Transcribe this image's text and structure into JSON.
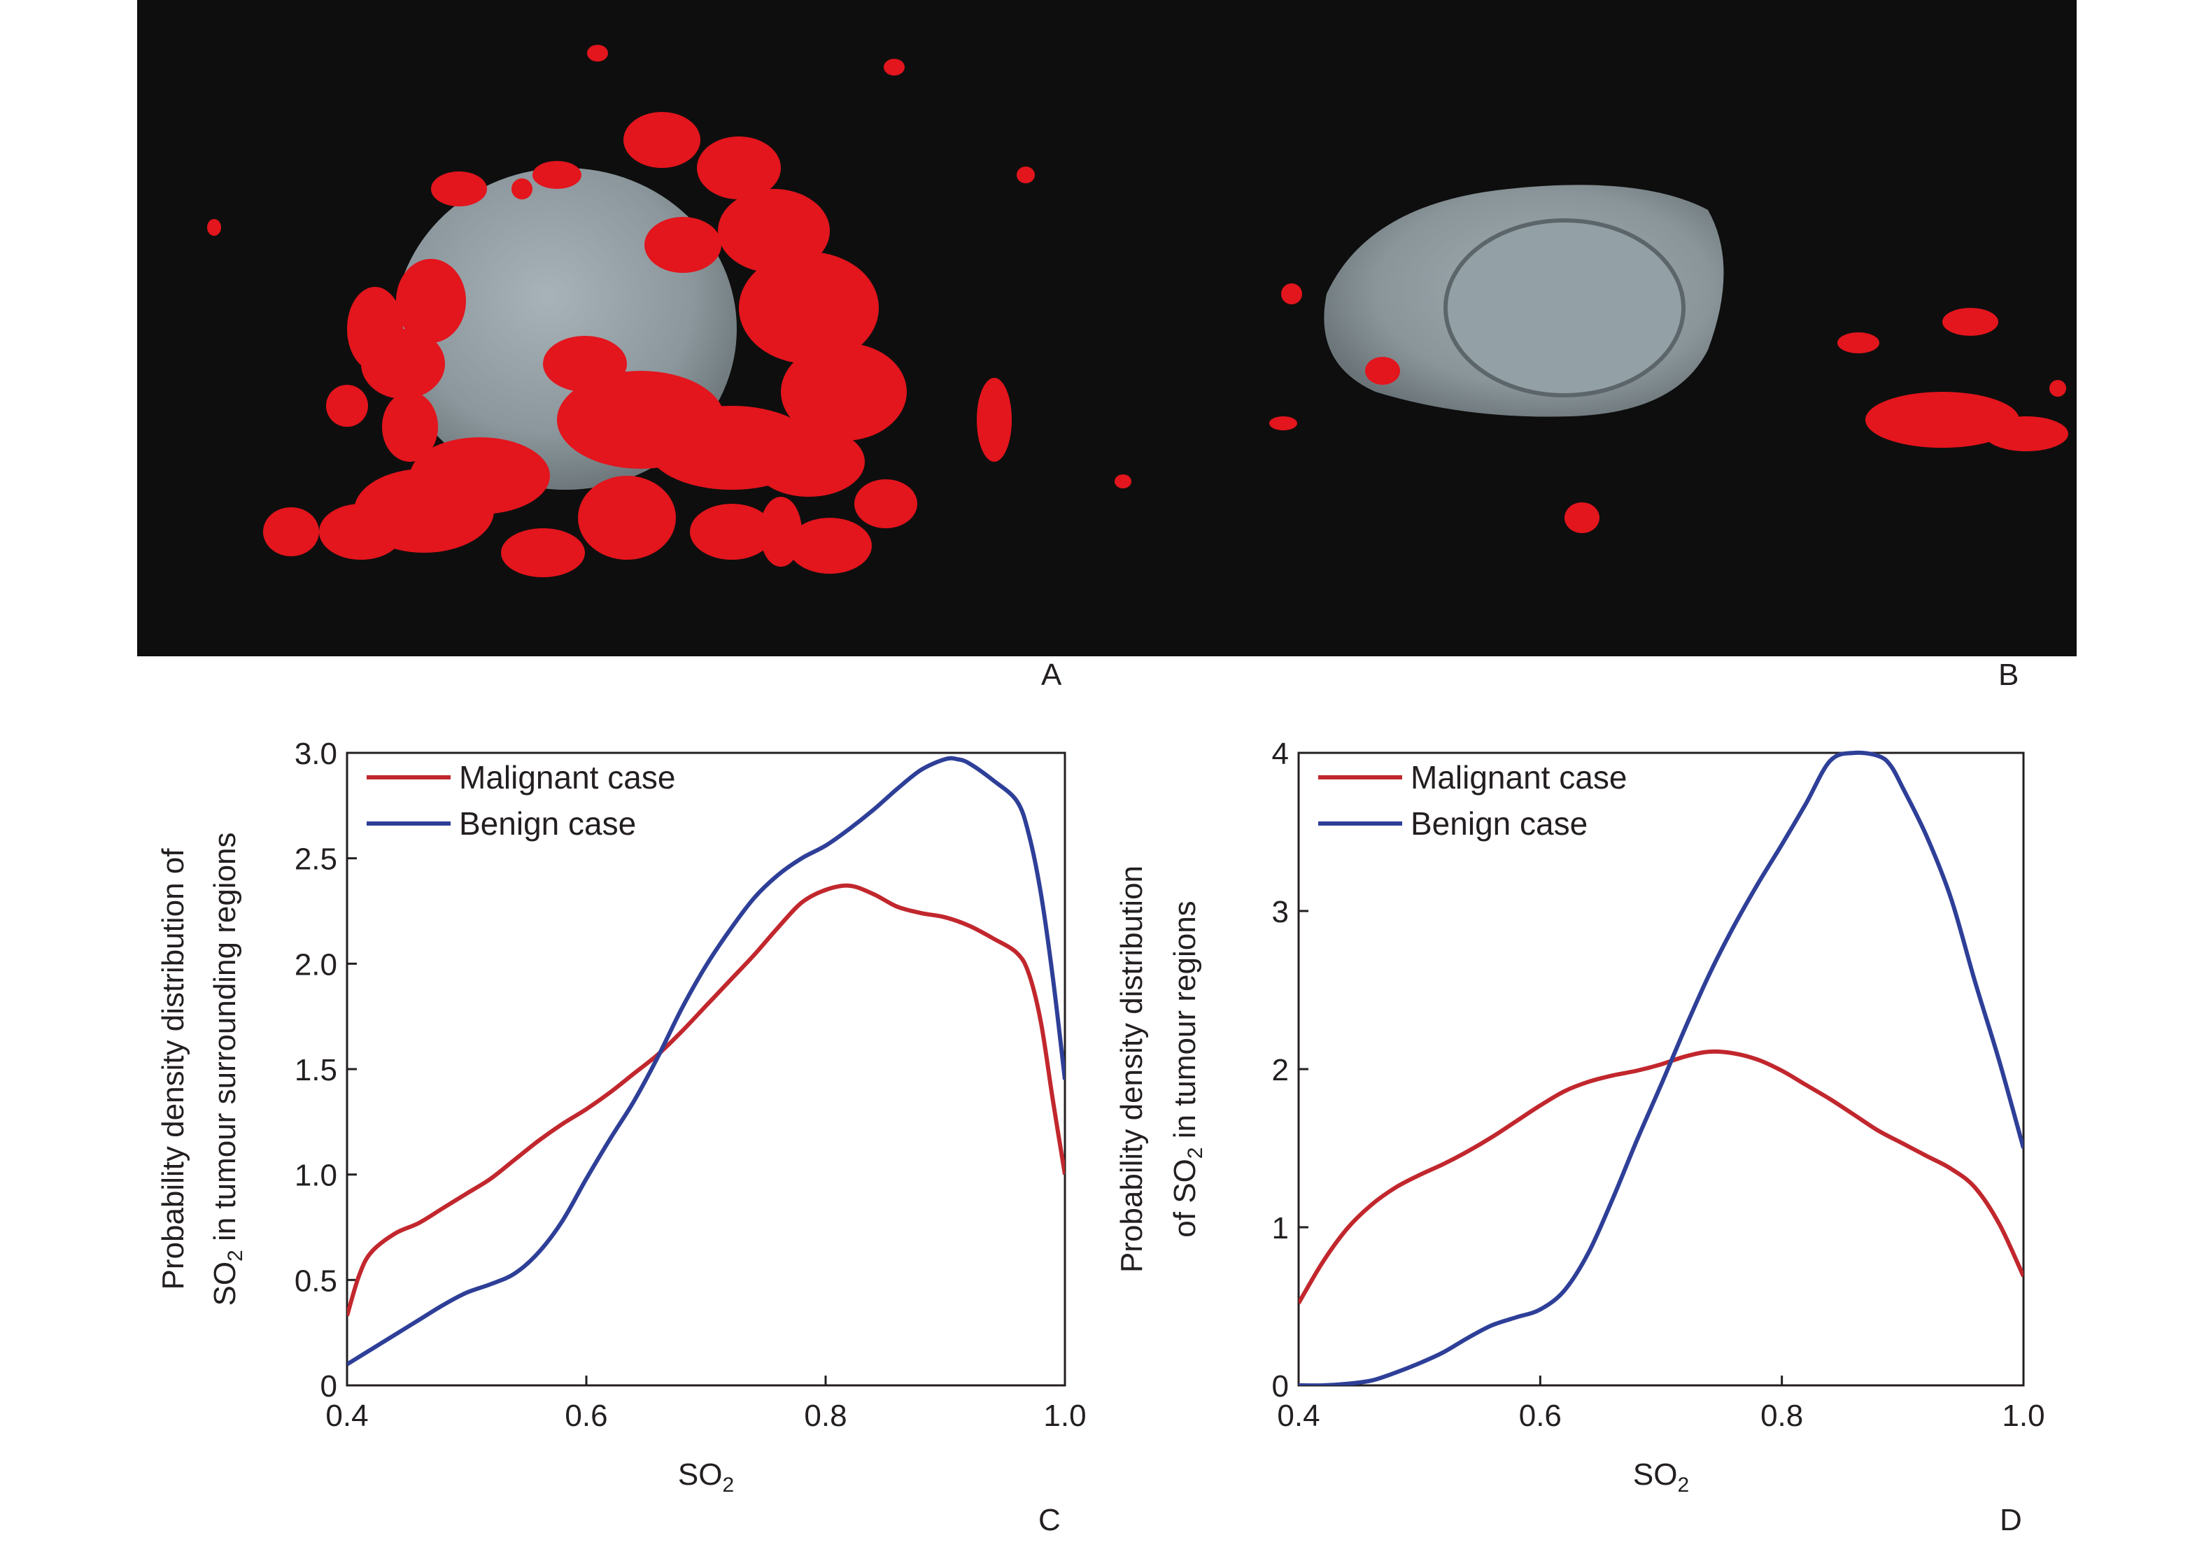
{
  "figure": {
    "panel_labels": [
      "A",
      "B",
      "C",
      "D"
    ],
    "render_description": "3D rendering: grey tumour surface with red vascular structures",
    "colors": {
      "background_render": "#0e0e0e",
      "vessel_red": "#e3151d",
      "tumour_grey": "#8e9ba1",
      "malignant": "#c1272d",
      "benign": "#2e3f98"
    }
  },
  "chart_data": [
    {
      "id": "C",
      "type": "line",
      "title": "",
      "xlabel": "SO",
      "xlabel_sub": "2",
      "ylabel_line1": "Probability density distribution of",
      "ylabel_line2_pre": "SO",
      "ylabel_line2_sub": "2",
      "ylabel_line2_post": " in tumour surrounding regions",
      "xlim": [
        0.4,
        1.0
      ],
      "ylim": [
        0,
        3.0
      ],
      "xticks": [
        0.4,
        0.6,
        0.8,
        1.0
      ],
      "xtick_labels": [
        "0.4",
        "0.6",
        "0.8",
        "1.0"
      ],
      "yticks": [
        0,
        0.5,
        1.0,
        1.5,
        2.0,
        2.5,
        3.0
      ],
      "ytick_labels": [
        "0",
        "0.5",
        "1.0",
        "1.5",
        "2.0",
        "2.5",
        "3.0"
      ],
      "grid": false,
      "legend_position": "top-left",
      "series": [
        {
          "name": "Malignant case",
          "color": "#c1272d",
          "x": [
            0.4,
            0.41,
            0.42,
            0.44,
            0.46,
            0.48,
            0.5,
            0.52,
            0.54,
            0.56,
            0.58,
            0.6,
            0.62,
            0.64,
            0.66,
            0.68,
            0.7,
            0.72,
            0.74,
            0.76,
            0.78,
            0.8,
            0.82,
            0.84,
            0.86,
            0.88,
            0.9,
            0.92,
            0.94,
            0.96,
            0.97,
            0.98,
            0.99,
            1.0
          ],
          "y": [
            0.33,
            0.52,
            0.63,
            0.72,
            0.77,
            0.84,
            0.91,
            0.98,
            1.07,
            1.16,
            1.24,
            1.31,
            1.39,
            1.48,
            1.57,
            1.68,
            1.8,
            1.92,
            2.04,
            2.17,
            2.29,
            2.35,
            2.37,
            2.33,
            2.27,
            2.24,
            2.22,
            2.18,
            2.12,
            2.05,
            1.95,
            1.72,
            1.35,
            1.0
          ]
        },
        {
          "name": "Benign case",
          "color": "#2e3f98",
          "x": [
            0.4,
            0.42,
            0.44,
            0.46,
            0.48,
            0.5,
            0.52,
            0.54,
            0.56,
            0.58,
            0.6,
            0.62,
            0.64,
            0.66,
            0.68,
            0.7,
            0.72,
            0.74,
            0.76,
            0.78,
            0.8,
            0.82,
            0.84,
            0.86,
            0.88,
            0.9,
            0.91,
            0.92,
            0.94,
            0.96,
            0.97,
            0.98,
            0.99,
            1.0
          ],
          "y": [
            0.1,
            0.17,
            0.24,
            0.31,
            0.38,
            0.44,
            0.48,
            0.53,
            0.63,
            0.78,
            0.98,
            1.17,
            1.35,
            1.56,
            1.79,
            1.99,
            2.16,
            2.31,
            2.42,
            2.5,
            2.56,
            2.64,
            2.73,
            2.83,
            2.92,
            2.97,
            2.97,
            2.95,
            2.87,
            2.77,
            2.61,
            2.33,
            1.93,
            1.45
          ]
        }
      ]
    },
    {
      "id": "D",
      "type": "line",
      "title": "",
      "xlabel": "SO",
      "xlabel_sub": "2",
      "ylabel_line1": "Probability density distribution",
      "ylabel_line2_pre": "of SO",
      "ylabel_line2_sub": "2",
      "ylabel_line2_post": " in tumour regions",
      "xlim": [
        0.4,
        1.0
      ],
      "ylim": [
        0,
        4
      ],
      "xticks": [
        0.4,
        0.6,
        0.8,
        1.0
      ],
      "xtick_labels": [
        "0.4",
        "0.6",
        "0.8",
        "1.0"
      ],
      "yticks": [
        0,
        1,
        2,
        3,
        4
      ],
      "ytick_labels": [
        "0",
        "1",
        "2",
        "3",
        "4"
      ],
      "grid": false,
      "legend_position": "top-left",
      "series": [
        {
          "name": "Malignant case",
          "color": "#c1272d",
          "x": [
            0.4,
            0.42,
            0.44,
            0.46,
            0.48,
            0.5,
            0.52,
            0.54,
            0.56,
            0.58,
            0.6,
            0.62,
            0.64,
            0.66,
            0.68,
            0.7,
            0.72,
            0.74,
            0.76,
            0.78,
            0.8,
            0.82,
            0.84,
            0.86,
            0.88,
            0.9,
            0.92,
            0.94,
            0.96,
            0.98,
            1.0
          ],
          "y": [
            0.52,
            0.78,
            0.99,
            1.14,
            1.25,
            1.33,
            1.4,
            1.48,
            1.57,
            1.67,
            1.77,
            1.86,
            1.92,
            1.96,
            1.99,
            2.03,
            2.08,
            2.11,
            2.1,
            2.06,
            1.99,
            1.9,
            1.81,
            1.71,
            1.61,
            1.53,
            1.45,
            1.37,
            1.25,
            1.02,
            0.69
          ]
        },
        {
          "name": "Benign case",
          "color": "#2e3f98",
          "x": [
            0.4,
            0.42,
            0.44,
            0.46,
            0.48,
            0.5,
            0.52,
            0.54,
            0.56,
            0.58,
            0.6,
            0.62,
            0.64,
            0.66,
            0.68,
            0.7,
            0.72,
            0.74,
            0.76,
            0.78,
            0.8,
            0.82,
            0.84,
            0.86,
            0.88,
            0.89,
            0.9,
            0.92,
            0.94,
            0.96,
            0.98,
            1.0
          ],
          "y": [
            0.0,
            0.0,
            0.01,
            0.03,
            0.08,
            0.14,
            0.21,
            0.3,
            0.38,
            0.43,
            0.48,
            0.6,
            0.84,
            1.18,
            1.55,
            1.9,
            2.26,
            2.6,
            2.9,
            3.17,
            3.42,
            3.68,
            3.95,
            4.0,
            3.98,
            3.92,
            3.78,
            3.47,
            3.08,
            2.55,
            2.05,
            1.5
          ]
        }
      ]
    }
  ]
}
